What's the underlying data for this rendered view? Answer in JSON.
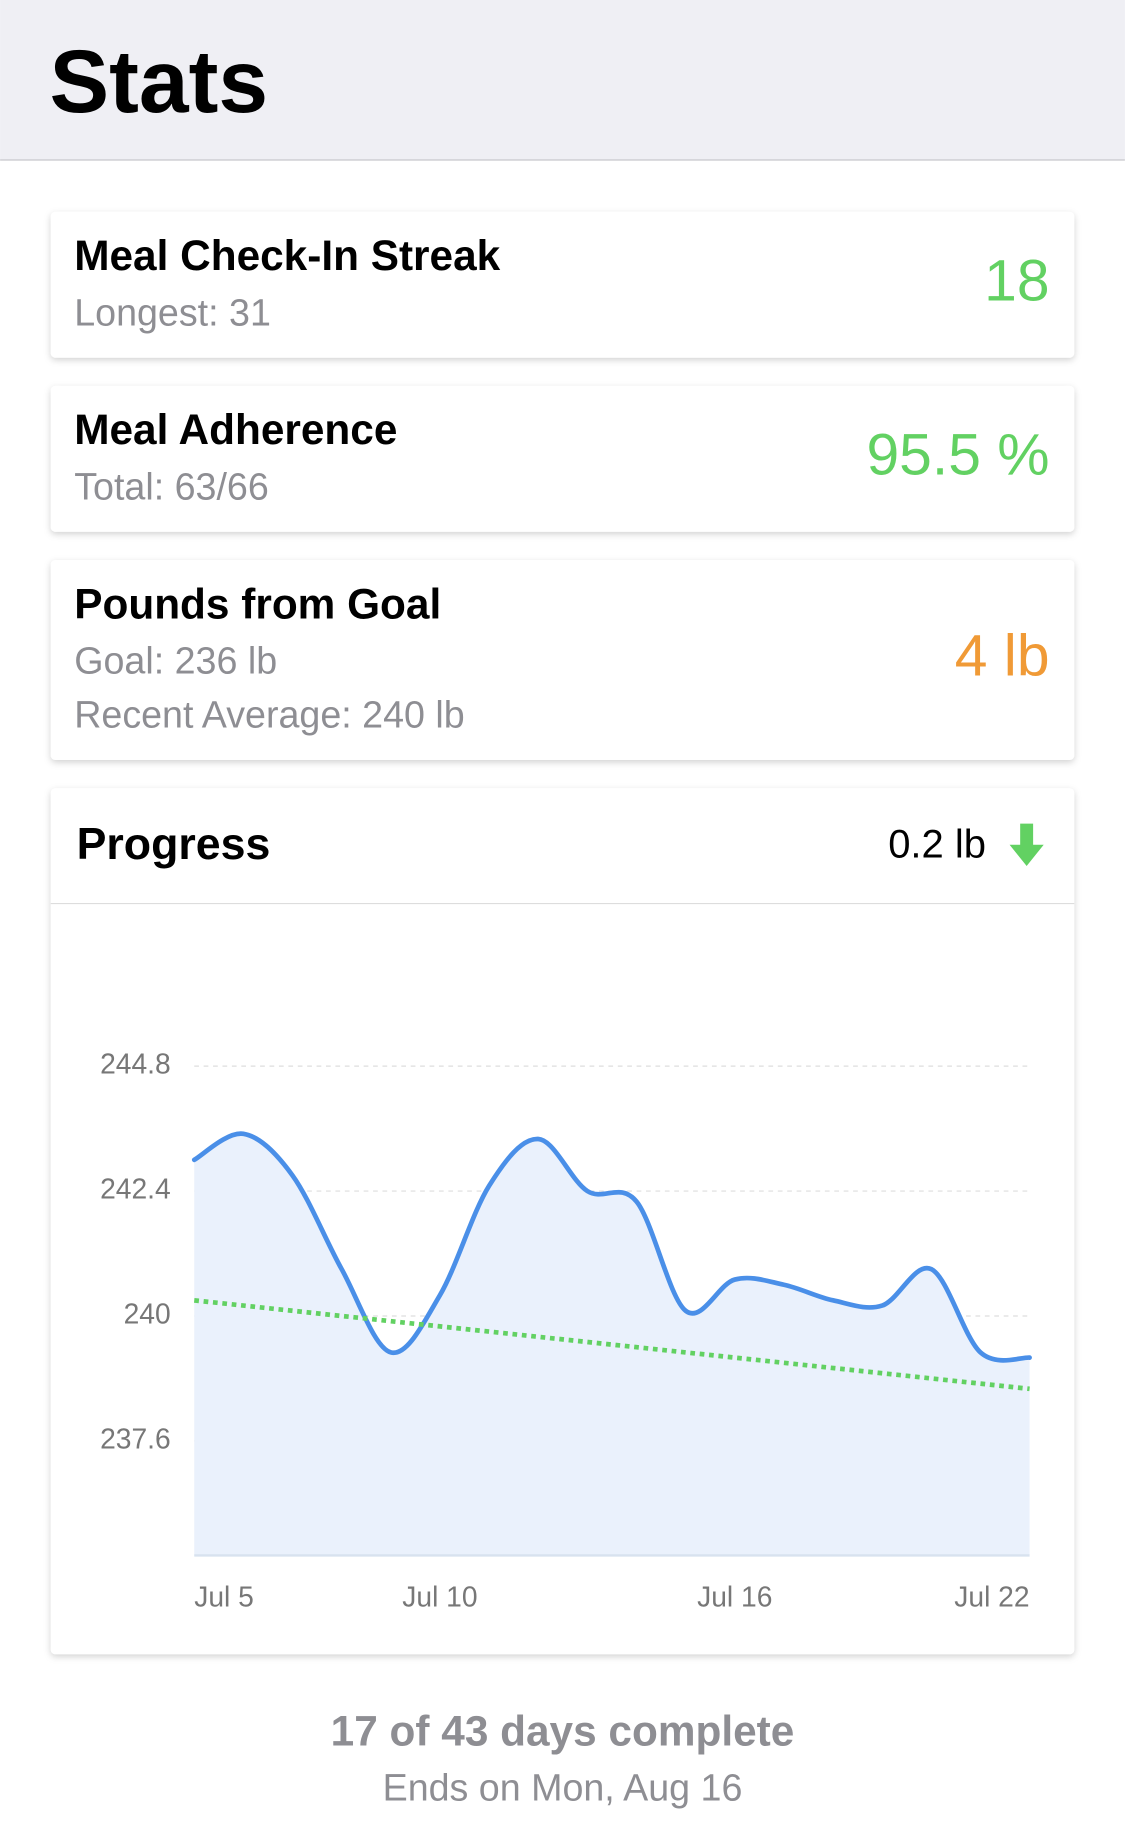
{
  "header": {
    "title": "Stats"
  },
  "cards": [
    {
      "title": "Meal Check-In Streak",
      "details": [
        "Longest: 31"
      ],
      "value": "18",
      "color": "#62d162"
    },
    {
      "title": "Meal Adherence",
      "details": [
        "Total: 63/66"
      ],
      "value": "95.5 %",
      "color": "#62d162"
    },
    {
      "title": "Pounds from Goal",
      "details": [
        "Goal: 236 lb",
        "Recent Average: 240 lb"
      ],
      "value": "4 lb",
      "color": "#f09a36"
    }
  ],
  "progress": {
    "title": "Progress",
    "change": "0.2 lb",
    "arrow_color": "#62d162"
  },
  "chart_data": {
    "type": "line",
    "categories": [
      "Jul 5",
      null,
      null,
      null,
      null,
      "Jul 10",
      null,
      null,
      null,
      null,
      null,
      "Jul 16",
      null,
      null,
      null,
      null,
      null,
      "Jul 22"
    ],
    "series": [
      {
        "color": "#4a8fe8",
        "fill": "#eaf1fc",
        "values": [
          243.0,
          243.5,
          242.7,
          240.9,
          239.3,
          240.4,
          242.5,
          243.4,
          242.4,
          242.2,
          240.1,
          240.7,
          240.6,
          240.3,
          240.2,
          240.9,
          239.3,
          239.2
        ]
      }
    ],
    "trend": {
      "color": "#62d162",
      "values": [
        240.3,
        238.6
      ]
    },
    "ylim": [
      235.4,
      247.2
    ],
    "yticks": [
      237.6,
      240,
      242.4,
      244.8
    ],
    "grid": true
  },
  "footer": {
    "summary": "17 of 43 days complete",
    "end": "Ends on Mon, Aug 16"
  }
}
